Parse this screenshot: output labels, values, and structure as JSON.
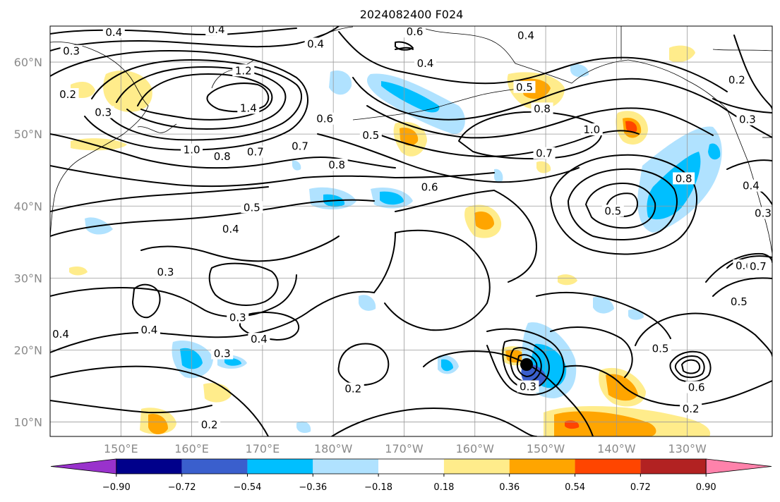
{
  "title": "2024082400 F024",
  "map": {
    "lat_ticks": [
      {
        "lat": 60,
        "label": "60°N"
      },
      {
        "lat": 50,
        "label": "50°N"
      },
      {
        "lat": 40,
        "label": "40°N"
      },
      {
        "lat": 30,
        "label": "30°N"
      },
      {
        "lat": 20,
        "label": "20°N"
      },
      {
        "lat": 10,
        "label": "10°N"
      }
    ],
    "lon_ticks": [
      {
        "lon": 150,
        "label": "150°E"
      },
      {
        "lon": 160,
        "label": "160°E"
      },
      {
        "lon": 170,
        "label": "170°E"
      },
      {
        "lon": 180,
        "label": "180°W"
      },
      {
        "lon": 190,
        "label": "170°W"
      },
      {
        "lon": 200,
        "label": "160°W"
      },
      {
        "lon": 210,
        "label": "150°W"
      },
      {
        "lon": 220,
        "label": "140°W"
      },
      {
        "lon": 230,
        "label": "130°W"
      }
    ],
    "lon_range": [
      140,
      242
    ],
    "lat_range": [
      8,
      65
    ],
    "contour_labels": [
      {
        "lon": 149,
        "lat": 64.1,
        "text": "0.4"
      },
      {
        "lon": 163.5,
        "lat": 64.5,
        "text": "0.4"
      },
      {
        "lon": 143,
        "lat": 61.5,
        "text": "0.3"
      },
      {
        "lon": 177.5,
        "lat": 62.5,
        "text": "0.4"
      },
      {
        "lon": 191.5,
        "lat": 64.2,
        "text": "0.6"
      },
      {
        "lon": 193,
        "lat": 59.8,
        "text": "0.4"
      },
      {
        "lon": 167.3,
        "lat": 58.8,
        "text": "1.2"
      },
      {
        "lon": 168,
        "lat": 53.6,
        "text": "1.4"
      },
      {
        "lon": 207.2,
        "lat": 63.7,
        "text": "0.4"
      },
      {
        "lon": 207,
        "lat": 56.5,
        "text": "0.5"
      },
      {
        "lon": 209.5,
        "lat": 53.5,
        "text": "0.8"
      },
      {
        "lon": 216.5,
        "lat": 50.6,
        "text": "1.0"
      },
      {
        "lon": 237,
        "lat": 57.5,
        "text": "0.2"
      },
      {
        "lon": 238.5,
        "lat": 52,
        "text": "0.3"
      },
      {
        "lon": 142.5,
        "lat": 55.5,
        "text": "0.2"
      },
      {
        "lon": 147.5,
        "lat": 53,
        "text": "0.3"
      },
      {
        "lon": 160,
        "lat": 47.8,
        "text": "1.0"
      },
      {
        "lon": 164.3,
        "lat": 46.9,
        "text": "0.8"
      },
      {
        "lon": 169,
        "lat": 47.5,
        "text": "0.7"
      },
      {
        "lon": 175.3,
        "lat": 48.3,
        "text": "0.7"
      },
      {
        "lon": 178.8,
        "lat": 52.1,
        "text": "0.6"
      },
      {
        "lon": 185.3,
        "lat": 49.8,
        "text": "0.5"
      },
      {
        "lon": 180.5,
        "lat": 45.7,
        "text": "0.8"
      },
      {
        "lon": 193.6,
        "lat": 42.6,
        "text": "0.6"
      },
      {
        "lon": 209.8,
        "lat": 47.3,
        "text": "0.7"
      },
      {
        "lon": 219.5,
        "lat": 39.3,
        "text": "0.5"
      },
      {
        "lon": 229.5,
        "lat": 43.8,
        "text": "0.8"
      },
      {
        "lon": 239,
        "lat": 42.8,
        "text": "0.4"
      },
      {
        "lon": 240.7,
        "lat": 39,
        "text": "0.3"
      },
      {
        "lon": 168.5,
        "lat": 39.8,
        "text": "0.5"
      },
      {
        "lon": 165.5,
        "lat": 36.8,
        "text": "0.4"
      },
      {
        "lon": 156.3,
        "lat": 30.8,
        "text": "0.3"
      },
      {
        "lon": 166.5,
        "lat": 24.5,
        "text": "0.3"
      },
      {
        "lon": 169.5,
        "lat": 21.5,
        "text": "0.4"
      },
      {
        "lon": 154,
        "lat": 22.8,
        "text": "0.4"
      },
      {
        "lon": 141.5,
        "lat": 22.2,
        "text": "0.4"
      },
      {
        "lon": 164.3,
        "lat": 19.5,
        "text": "0.3"
      },
      {
        "lon": 162.5,
        "lat": 9.6,
        "text": "0.2"
      },
      {
        "lon": 182.8,
        "lat": 14.6,
        "text": "0.2"
      },
      {
        "lon": 238,
        "lat": 31.7,
        "text": "0.6"
      },
      {
        "lon": 240,
        "lat": 31.6,
        "text": "0.7"
      },
      {
        "lon": 237.3,
        "lat": 26.7,
        "text": "0.5"
      },
      {
        "lon": 226.2,
        "lat": 20.2,
        "text": "0.5"
      },
      {
        "lon": 231.3,
        "lat": 14.8,
        "text": "0.6"
      },
      {
        "lon": 230.5,
        "lat": 11.8,
        "text": "0.2"
      },
      {
        "lon": 207.5,
        "lat": 14.9,
        "text": "0.3"
      }
    ]
  },
  "colorbar": {
    "colors": [
      "#9932cc",
      "#00008b",
      "#3a5fcd",
      "#00bfff",
      "#b0e2ff",
      "#ffffff",
      "#ffec8b",
      "#ffa500",
      "#ff4500",
      "#b22222",
      "#ff82ab"
    ],
    "tick_labels": [
      "−0.90",
      "−0.72",
      "−0.54",
      "−0.36",
      "−0.18",
      "0.18",
      "0.36",
      "0.54",
      "0.72",
      "0.90"
    ]
  }
}
